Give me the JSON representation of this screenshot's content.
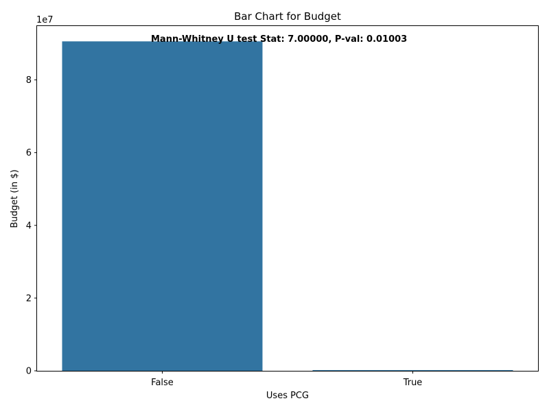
{
  "chart_data": {
    "type": "bar",
    "title": "Bar Chart for Budget",
    "xlabel": "Uses PCG",
    "ylabel": "Budget (in $)",
    "categories": [
      "False",
      "True"
    ],
    "values": [
      90600000,
      200000
    ],
    "ylim": [
      0,
      95000000
    ],
    "yticks": [
      0,
      20000000,
      40000000,
      60000000,
      80000000
    ],
    "ytick_labels": [
      "0",
      "2",
      "4",
      "6",
      "8"
    ],
    "offset_label": "1e7",
    "annotation": "Mann-Whitney U test Stat: 7.00000, P-val: 0.01003",
    "bar_color": "#3274a1",
    "grid": false,
    "legend": "none"
  }
}
